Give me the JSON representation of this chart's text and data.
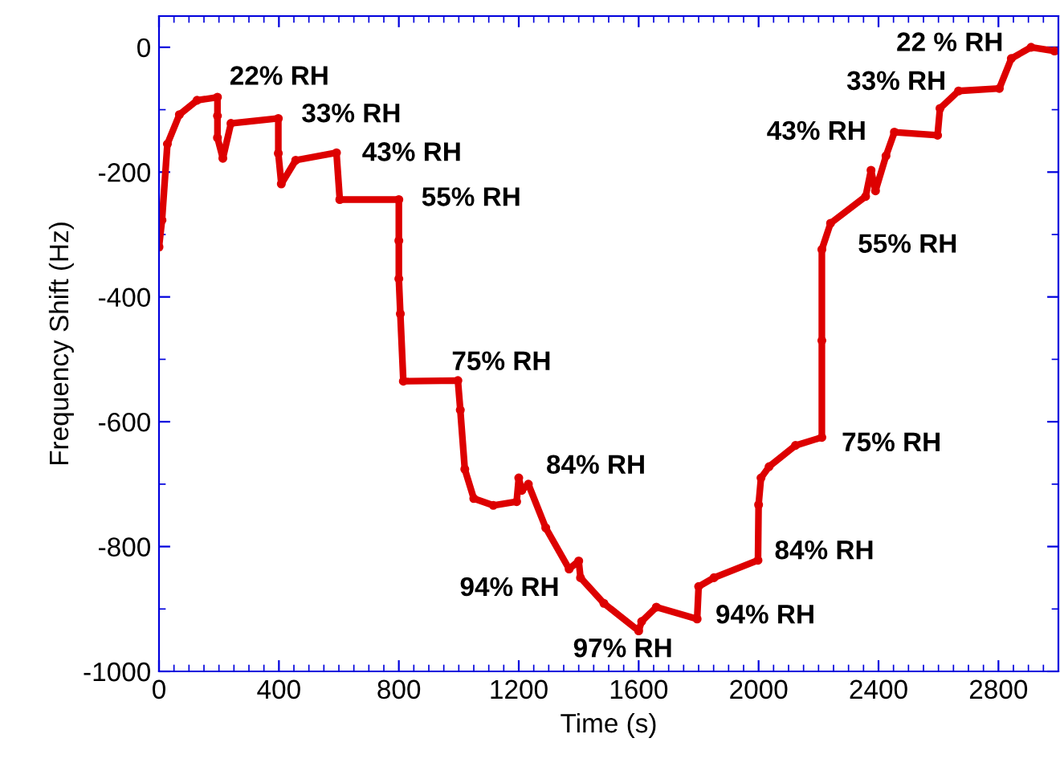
{
  "chart_data": {
    "type": "line",
    "xlabel": "Time (s)",
    "ylabel": "Frequency Shift (Hz)",
    "xlim": [
      0,
      3000
    ],
    "ylim": [
      -1000,
      50
    ],
    "xticks": [
      0,
      400,
      800,
      1200,
      1600,
      2000,
      2400,
      2800
    ],
    "yticks": [
      -1000,
      -800,
      -600,
      -400,
      -200,
      0
    ],
    "grid": false,
    "marker": "circle",
    "line_style": "solid",
    "series": [
      {
        "color": "#dd0000",
        "x": [
          0,
          10,
          28,
          68,
          127,
          195,
          195,
          195,
          213,
          240,
          398,
          398,
          408,
          456,
          592,
          603,
          800,
          800,
          800,
          805,
          815,
          997,
          1005,
          1020,
          1050,
          1115,
          1193,
          1200,
          1210,
          1232,
          1290,
          1368,
          1400,
          1406,
          1484,
          1600,
          1610,
          1659,
          1795,
          1800,
          1851,
          1998,
          2000,
          2008,
          2035,
          2123,
          2211,
          2211,
          2211,
          2240,
          2357,
          2375,
          2390,
          2425,
          2453,
          2597,
          2605,
          2667,
          2803,
          2843,
          2909,
          2987
        ],
        "values": [
          -320,
          -277,
          -155,
          -108,
          -85,
          -80,
          -110,
          -145,
          -178,
          -122,
          -114,
          -170,
          -219,
          -181,
          -169,
          -244,
          -244,
          -310,
          -371,
          -427,
          -535,
          -534,
          -581,
          -676,
          -723,
          -734,
          -728,
          -690,
          -710,
          -700,
          -770,
          -836,
          -823,
          -850,
          -891,
          -935,
          -920,
          -897,
          -916,
          -864,
          -850,
          -822,
          -733,
          -690,
          -672,
          -638,
          -625,
          -470,
          -324,
          -282,
          -239,
          -197,
          -230,
          -174,
          -136,
          -141,
          -98,
          -70,
          -66,
          -18,
          0,
          -6
        ]
      }
    ],
    "annotations": [
      "22% RH",
      "33% RH",
      "43% RH",
      "55% RH",
      "75% RH",
      "84% RH",
      "94% RH",
      "97% RH",
      "94% RH",
      "84% RH",
      "75% RH",
      "55% RH",
      "43% RH",
      "33% RH",
      "22 % RH"
    ]
  }
}
